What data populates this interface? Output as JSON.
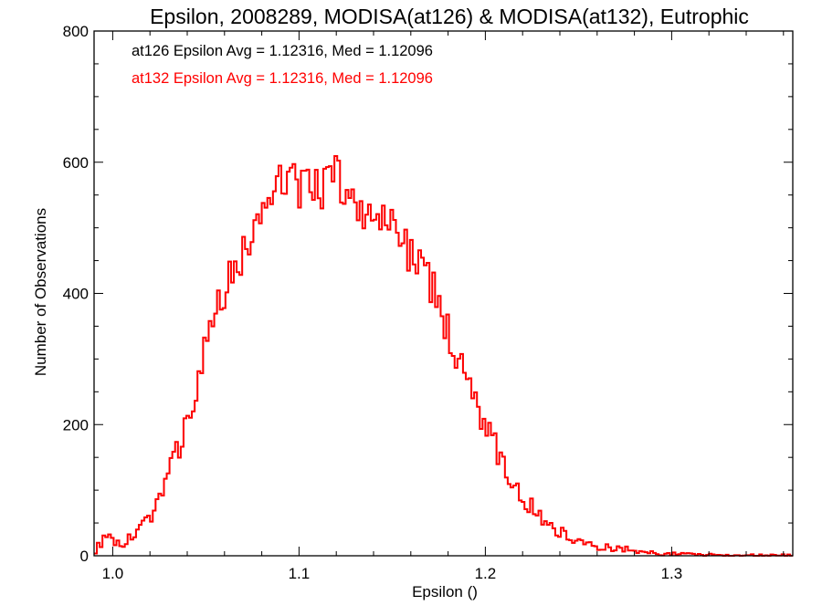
{
  "chart_data": {
    "type": "step-histogram",
    "title": "Epsilon, 2008289, MODISA(at126) & MODISA(at132), Eutrophic",
    "xlabel": "Epsilon ()",
    "ylabel": "Number of Observations",
    "xlim": [
      0.99,
      1.365
    ],
    "ylim": [
      0,
      800
    ],
    "xticks": [
      1.0,
      1.1,
      1.2,
      1.3
    ],
    "xtick_labels": [
      "1.0",
      "1.1",
      "1.2",
      "1.3"
    ],
    "yticks": [
      0,
      200,
      400,
      600,
      800
    ],
    "ytick_labels": [
      "0",
      "200",
      "400",
      "600",
      "800"
    ],
    "bin_width": 0.0015,
    "annotations": [
      {
        "text": "at126 Epsilon Avg = 1.12316, Med = 1.12096",
        "color": "#000000"
      },
      {
        "text": "at132 Epsilon Avg = 1.12316, Med = 1.12096",
        "color": "#ff0000"
      }
    ],
    "series": [
      {
        "label": "at126",
        "color": "#000000",
        "x": [
          0.99,
          0.995,
          1.0,
          1.005,
          1.01,
          1.015,
          1.02,
          1.025,
          1.03,
          1.035,
          1.04,
          1.045,
          1.05,
          1.055,
          1.06,
          1.065,
          1.07,
          1.075,
          1.08,
          1.085,
          1.09,
          1.095,
          1.1,
          1.105,
          1.11,
          1.115,
          1.12,
          1.125,
          1.13,
          1.135,
          1.14,
          1.145,
          1.15,
          1.155,
          1.16,
          1.165,
          1.17,
          1.175,
          1.18,
          1.185,
          1.19,
          1.195,
          1.2,
          1.205,
          1.21,
          1.215,
          1.22,
          1.225,
          1.23,
          1.235,
          1.24,
          1.245,
          1.25,
          1.255,
          1.26,
          1.265,
          1.27,
          1.275,
          1.28,
          1.285,
          1.29,
          1.3,
          1.31,
          1.32,
          1.33,
          1.34,
          1.35,
          1.365
        ],
        "y": [
          5,
          25,
          25,
          15,
          30,
          38,
          60,
          90,
          130,
          160,
          210,
          250,
          320,
          360,
          410,
          440,
          460,
          480,
          520,
          560,
          590,
          575,
          560,
          555,
          560,
          565,
          580,
          555,
          540,
          525,
          500,
          510,
          505,
          480,
          465,
          440,
          420,
          385,
          340,
          300,
          260,
          230,
          200,
          170,
          135,
          110,
          90,
          75,
          60,
          45,
          38,
          30,
          22,
          18,
          14,
          15,
          10,
          12,
          8,
          5,
          4,
          3,
          2,
          2,
          1,
          1,
          1,
          1
        ]
      },
      {
        "label": "at132",
        "color": "#ff0000",
        "x": [
          0.99,
          0.995,
          1.0,
          1.005,
          1.01,
          1.015,
          1.02,
          1.025,
          1.03,
          1.035,
          1.04,
          1.045,
          1.05,
          1.055,
          1.06,
          1.065,
          1.07,
          1.075,
          1.08,
          1.085,
          1.09,
          1.095,
          1.1,
          1.105,
          1.11,
          1.115,
          1.12,
          1.125,
          1.13,
          1.135,
          1.14,
          1.145,
          1.15,
          1.155,
          1.16,
          1.165,
          1.17,
          1.175,
          1.18,
          1.185,
          1.19,
          1.195,
          1.2,
          1.205,
          1.21,
          1.215,
          1.22,
          1.225,
          1.23,
          1.235,
          1.24,
          1.245,
          1.25,
          1.255,
          1.26,
          1.265,
          1.27,
          1.275,
          1.28,
          1.285,
          1.29,
          1.3,
          1.31,
          1.32,
          1.33,
          1.34,
          1.35,
          1.365
        ],
        "y": [
          5,
          25,
          25,
          15,
          30,
          38,
          60,
          90,
          130,
          160,
          210,
          250,
          320,
          360,
          410,
          440,
          460,
          480,
          520,
          560,
          590,
          575,
          560,
          555,
          560,
          565,
          580,
          555,
          540,
          525,
          500,
          510,
          505,
          480,
          465,
          440,
          420,
          385,
          340,
          300,
          260,
          230,
          200,
          170,
          135,
          110,
          90,
          75,
          60,
          45,
          38,
          30,
          22,
          18,
          14,
          15,
          10,
          12,
          8,
          5,
          4,
          3,
          2,
          2,
          1,
          1,
          1,
          1
        ]
      }
    ]
  }
}
